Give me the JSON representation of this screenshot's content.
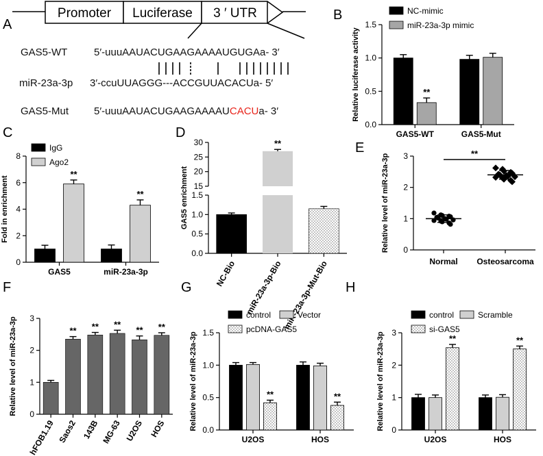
{
  "panel_labels": {
    "A": "A",
    "B": "B",
    "C": "C",
    "D": "D",
    "E": "E",
    "F": "F",
    "G": "G",
    "H": "H"
  },
  "panelA": {
    "construct": {
      "promoter": "Promoter",
      "luciferase": "Luciferase",
      "utr": "3 ′ UTR"
    },
    "rows": [
      {
        "label": "GAS5-WT",
        "prefix": "5′-uuuAAUACUGAAGAAAAUGUGAa-",
        "suffix": "3′",
        "mut": ""
      },
      {
        "label": "miR-23a-3p",
        "prefix": "3′-ccuUUAGGG---ACCGUUACACUa-",
        "suffix": "5′",
        "mut": ""
      },
      {
        "label": "GAS5-Mut",
        "prefix": "5′-uuuAAUACUGAAGAAAAU",
        "mut": "CACU",
        "suffix": "a-   3′"
      }
    ]
  },
  "colors": {
    "black": "#000000",
    "gray": "#a6a6a6",
    "light": "#d0d0d0",
    "dark": "#666666",
    "red": "#e8231a"
  },
  "chart_data": [
    {
      "id": "B",
      "type": "bar",
      "ylabel": "Relative luciferase activity",
      "ylim": [
        0,
        1.5
      ],
      "yticks": [
        "0.0",
        "0.5",
        "1.0",
        "1.5"
      ],
      "categories": [
        "GAS5-WT",
        "GAS5-Mut"
      ],
      "series": [
        {
          "name": "NC-mimic",
          "values": [
            1.0,
            0.98
          ],
          "errors": [
            0.05,
            0.06
          ]
        },
        {
          "name": "miR-23a-3p mimic",
          "values": [
            0.33,
            1.01
          ],
          "errors": [
            0.07,
            0.06
          ]
        }
      ],
      "annotations": [
        {
          "category": "GAS5-WT",
          "series": "miR-23a-3p mimic",
          "text": "**"
        }
      ]
    },
    {
      "id": "C",
      "type": "bar",
      "ylabel": "Fold in enrichment",
      "ylim": [
        0,
        8
      ],
      "yticks": [
        "0",
        "2",
        "4",
        "6",
        "8"
      ],
      "categories": [
        "GAS5",
        "miR-23a-3p"
      ],
      "series": [
        {
          "name": "IgG",
          "values": [
            1.0,
            1.0
          ],
          "errors": [
            0.28,
            0.3
          ]
        },
        {
          "name": "Ago2",
          "values": [
            5.9,
            4.3
          ],
          "errors": [
            0.3,
            0.4
          ]
        }
      ],
      "annotations": [
        {
          "category": "GAS5",
          "series": "Ago2",
          "text": "**"
        },
        {
          "category": "miR-23a-3p",
          "series": "Ago2",
          "text": "**"
        }
      ]
    },
    {
      "id": "D",
      "type": "bar",
      "ylabel": "GAS5 enrichment",
      "axis_break": [
        1.5,
        15
      ],
      "yticks_lower": [
        "0.0",
        "0.5",
        "1.0",
        "1.5"
      ],
      "yticks_upper": [
        "15",
        "20",
        "25",
        "30"
      ],
      "categories": [
        "NC-Bio",
        "miR-23a-3p-Bio",
        "miR-23a-3p-Mut-Bio"
      ],
      "values": [
        1.0,
        27.0,
        1.15
      ],
      "errors": [
        0.04,
        0.6,
        0.06
      ],
      "annotations": [
        {
          "category": "miR-23a-3p-Bio",
          "text": "**"
        }
      ]
    },
    {
      "id": "E",
      "type": "scatter",
      "ylabel": "Relative level of miR-23a-3p",
      "ylim": [
        0,
        3
      ],
      "yticks": [
        "0",
        "1",
        "2",
        "3"
      ],
      "categories": [
        "Normal",
        "Osteosarcoma"
      ],
      "groups": [
        {
          "name": "Normal",
          "mean": 1.0,
          "sd": 0.12,
          "points": [
            1.18,
            1.12,
            1.1,
            1.08,
            1.06,
            1.04,
            1.02,
            1.0,
            0.98,
            0.96,
            0.94,
            0.92,
            0.9,
            0.86,
            0.82
          ]
        },
        {
          "name": "Osteosarcoma",
          "mean": 2.4,
          "sd": 0.14,
          "points": [
            2.62,
            2.58,
            2.52,
            2.48,
            2.45,
            2.42,
            2.4,
            2.38,
            2.36,
            2.34,
            2.32,
            2.3,
            2.26,
            2.22,
            2.18
          ]
        }
      ],
      "annotations": [
        {
          "text": "**"
        }
      ]
    },
    {
      "id": "F",
      "type": "bar",
      "ylabel": "Relative level of miR-23a-3p",
      "ylim": [
        0,
        3
      ],
      "yticks": [
        "0",
        "1",
        "2",
        "3"
      ],
      "categories": [
        "hFOB1.19",
        "Saos2",
        "143B",
        "MG-63",
        "U2OS",
        "HOS"
      ],
      "values": [
        1.0,
        2.35,
        2.48,
        2.53,
        2.33,
        2.47
      ],
      "errors": [
        0.06,
        0.08,
        0.08,
        0.1,
        0.12,
        0.08
      ],
      "annotations": [
        {
          "category": "Saos2",
          "text": "**"
        },
        {
          "category": "143B",
          "text": "**"
        },
        {
          "category": "MG-63",
          "text": "**"
        },
        {
          "category": "U2OS",
          "text": "**"
        },
        {
          "category": "HOS",
          "text": "**"
        }
      ]
    },
    {
      "id": "G",
      "type": "bar",
      "ylabel": "Relative level of miR-23a-3p",
      "ylim": [
        0,
        1.5
      ],
      "yticks": [
        "0.0",
        "0.5",
        "1.0",
        "1.5"
      ],
      "categories": [
        "U2OS",
        "HOS"
      ],
      "series": [
        {
          "name": "control",
          "values": [
            1.0,
            1.0
          ],
          "errors": [
            0.04,
            0.05
          ]
        },
        {
          "name": "Vector",
          "values": [
            1.01,
            0.99
          ],
          "errors": [
            0.03,
            0.04
          ]
        },
        {
          "name": "pcDNA-GAS5",
          "values": [
            0.42,
            0.38
          ],
          "errors": [
            0.04,
            0.05
          ]
        }
      ],
      "annotations": [
        {
          "category": "U2OS",
          "series": "pcDNA-GAS5",
          "text": "**"
        },
        {
          "category": "HOS",
          "series": "pcDNA-GAS5",
          "text": "**"
        }
      ]
    },
    {
      "id": "H",
      "type": "bar",
      "ylabel": "Relative level of miR-23a-3p",
      "ylim": [
        0,
        3
      ],
      "yticks": [
        "0",
        "1",
        "2",
        "3"
      ],
      "categories": [
        "U2OS",
        "HOS"
      ],
      "series": [
        {
          "name": "control",
          "values": [
            1.0,
            1.0
          ],
          "errors": [
            0.1,
            0.08
          ]
        },
        {
          "name": "Scramble",
          "values": [
            1.0,
            1.01
          ],
          "errors": [
            0.08,
            0.08
          ]
        },
        {
          "name": "si-GAS5",
          "values": [
            2.54,
            2.5
          ],
          "errors": [
            0.1,
            0.09
          ]
        }
      ],
      "annotations": [
        {
          "category": "U2OS",
          "series": "si-GAS5",
          "text": "**"
        },
        {
          "category": "HOS",
          "series": "si-GAS5",
          "text": "**"
        }
      ]
    }
  ]
}
